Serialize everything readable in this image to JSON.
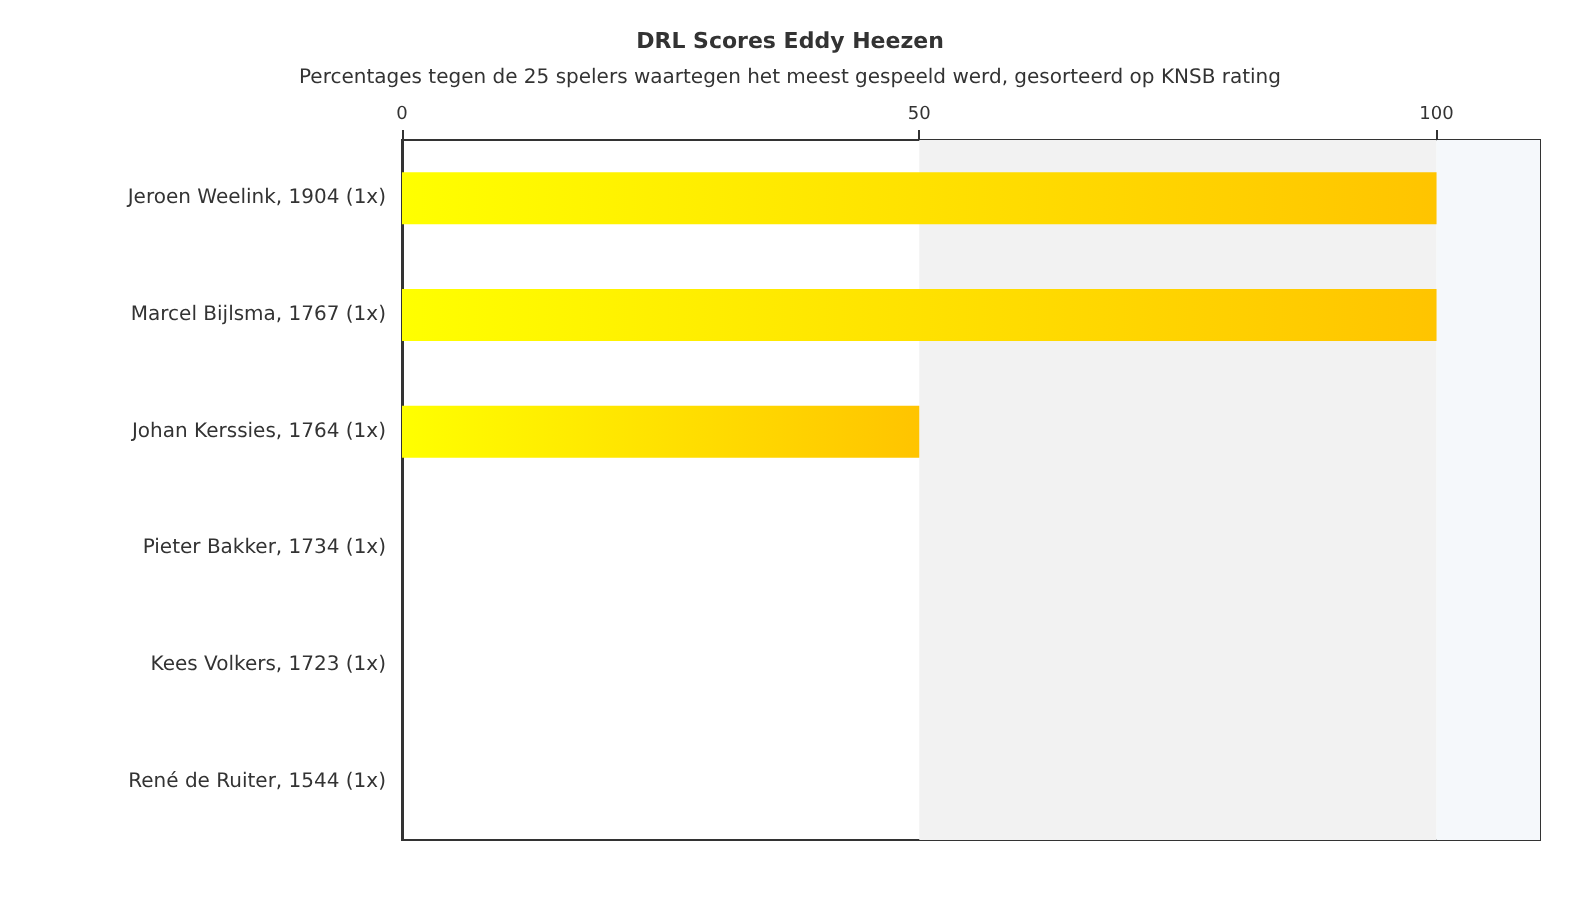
{
  "chart_data": {
    "type": "bar",
    "orientation": "horizontal",
    "title": "DRL Scores Eddy Heezen",
    "subtitle": "Percentages tegen de 25 spelers waartegen het meest gespeeld werd, gesorteerd op KNSB rating",
    "categories": [
      "Jeroen Weelink, 1904 (1x)",
      "Marcel Bijlsma, 1767 (1x)",
      "Johan Kerssies, 1764 (1x)",
      "Pieter Bakker, 1734 (1x)",
      "Kees Volkers, 1723 (1x)",
      "René de Ruiter, 1544 (1x)"
    ],
    "values": [
      100,
      100,
      50,
      0,
      0,
      0
    ],
    "color": "#ffc400",
    "xlim": [
      0,
      110
    ],
    "xticks": [
      0,
      50,
      100
    ],
    "bands": [
      {
        "axis": "x",
        "from": 50,
        "to": 100,
        "color": "#f2f2f2"
      },
      {
        "axis": "x",
        "from": 100,
        "to": 110,
        "color": "#f5f8fb"
      }
    ],
    "grid": false
  }
}
